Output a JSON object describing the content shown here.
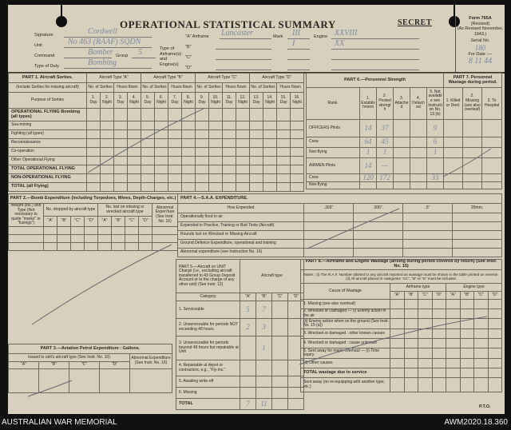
{
  "header": {
    "title": "OPERATIONAL STATISTICAL SUMMARY",
    "classification": "SECRET",
    "form": {
      "name": "Form 765A",
      "revised": "(Revised)",
      "as_revised": "(As Revised November, 1943.)",
      "serial_label": "Serial No.",
      "serial_value": "180",
      "date_label": "For Date :—",
      "date_value": "8 11 44"
    },
    "fields": [
      {
        "label": "Signature",
        "value": "Cordwell"
      },
      {
        "label": "Unit",
        "value": "No 463 (RAAF) SQDN"
      },
      {
        "label": "Command",
        "value": "Bomber"
      },
      {
        "label": "Type of Duty",
        "value": "Bombing"
      }
    ],
    "group_label": "Group",
    "group_value": "5",
    "airframe_label": "Type of Airframe(s) and Engine(s)",
    "airframes": [
      {
        "key": "\"A\" Airframe",
        "type": "Lancaster",
        "mark": "III",
        "engine": "XXVIII"
      },
      {
        "key": "\"B\"",
        "type": "",
        "mark": "I",
        "engine": "XX"
      },
      {
        "key": "\"C\"",
        "type": "",
        "mark": "",
        "engine": ""
      },
      {
        "key": "\"D\"",
        "type": "",
        "mark": "",
        "engine": ""
      }
    ],
    "mark_label": "Mark",
    "engine_label": "Engine"
  },
  "part1": {
    "title": "PART 1. Aircraft Sorties.",
    "note": "(Include Sorties for missing aircraft)",
    "purpose": "Purpose of Sorties",
    "types": [
      "Aircraft Type \"A\"",
      "Aircraft Type \"B\"",
      "Aircraft Type \"C\"",
      "Aircraft Type \"D\""
    ],
    "sub": [
      "No. of Sorties",
      "Hours flown"
    ],
    "cols": [
      "1. Day",
      "2. Night",
      "3. Day",
      "4. Night",
      "5. Day",
      "6. Night",
      "7. Day",
      "8. Night",
      "9. Day",
      "10. Night",
      "11. Day",
      "12. Night",
      "13. Day",
      "14. Night",
      "15. Day",
      "16. Night"
    ],
    "rows": [
      "OPERATIONAL FLYING  Bombing (all types)",
      "Sea-mining",
      "Fighting (all types)",
      "Reconnaissance",
      "Co-operation",
      "Other Operational Flying",
      "TOTAL OPERATIONAL FLYING",
      "NON-OPERATIONAL FLYING",
      "TOTAL (all Flying)"
    ]
  },
  "part6": {
    "title": "PART 6.—Personnel Strength",
    "rank": "Rank.",
    "cols": [
      "1. Establishment",
      "2. Posted strength",
      "3. Attached",
      "4. Detached",
      "5. Not available see Instruction No. 13 (b)"
    ],
    "rows": [
      {
        "label": "OFFICERS Pilots",
        "values": [
          "14",
          "37",
          "",
          "",
          "9"
        ]
      },
      {
        "label": "Crew",
        "values": [
          "64",
          "45",
          "",
          "",
          "6"
        ]
      },
      {
        "label": "Non-flying",
        "values": [
          "1",
          "1",
          "",
          "",
          "1"
        ]
      },
      {
        "label": "AIRMEN Pilots",
        "values": [
          "14",
          "—",
          "",
          "",
          ""
        ]
      },
      {
        "label": "Crew",
        "values": [
          "120",
          "172",
          "",
          "",
          "33"
        ]
      },
      {
        "label": "Non-flying",
        "values": [
          "",
          "",
          "",
          "",
          ""
        ]
      }
    ]
  },
  "part7": {
    "title": "PART 7. Personnel Wastage during period.",
    "cols": [
      "1. Killed or Died.",
      "2. Missing (see also overleaf)",
      "3. To Hospital"
    ]
  },
  "part2": {
    "title": "PART 2.—Bomb Expenditure (including Torpedoes, Mines, Depth-Charges, etc.)",
    "weight": "Weight (lbs.) and Type (Not necessary to quote \"marks\" or \"fusings\")",
    "dropped": "No. dropped by aircraft type",
    "lost": "No. lost on missing or wrecked aircraft type",
    "abnormal": "Abnormal Expen'ture (See Instr. No. 16)",
    "keys": [
      "\"A\"",
      "\"B\"",
      "\"C\"",
      "\"D\""
    ]
  },
  "part4": {
    "title": "PART 4.—S.A.A. EXPENDITURE.",
    "how": "How Expended",
    "cols": [
      ".303\"",
      ".300\".",
      ".5\"",
      "20mm."
    ],
    "rows": [
      "Operationally fired in air",
      "Expended in Practice, Training or Butt Tests (Aircraft)",
      "Rounds lost on Wrecked or Missing Aircraft",
      "Ground Defence Expenditure, operational and training",
      "Abnormal expenditure (see Instruction No. 16)"
    ]
  },
  "part3": {
    "title": "PART 3.—Aviation Petrol Expenditure : Gallons.",
    "issued": "Issued to unit's aircraft type (See Instr. No. 10)",
    "abnormal": "Abnormal Expenditure (See Instr. No. 16)",
    "keys": [
      "\"A\"",
      "\"B\"",
      "\"C\"",
      "\"D\""
    ]
  },
  "part5": {
    "title": "PART 5.—Aircraft on UNIT Charge (i.e., excluding aircraft transferred to 43 Group Deposit Account or to the charge of any other unit) (See Instr. 12)",
    "aircraft_type": "Aircraft type",
    "category": "Category",
    "keys": [
      "\"A\"",
      "\"B\"",
      "\"C\"",
      "\"D\""
    ],
    "rows": [
      {
        "label": "1. Serviceable",
        "values": [
          "5",
          "7",
          "",
          ""
        ]
      },
      {
        "label": "2. Unserviceable for periods NOT exceeding 48 hours",
        "values": [
          "2",
          "3",
          "",
          ""
        ]
      },
      {
        "label": "3. Unserviceable for periods beyond 48 hours but repairable at Unit",
        "values": [
          "",
          "1",
          "",
          ""
        ]
      },
      {
        "label": "4. Repairable at depot or contractors, e.g., \"Fly-ins.\"",
        "values": [
          "",
          "",
          "",
          ""
        ]
      },
      {
        "label": "5. Awaiting write-off",
        "values": [
          "",
          "",
          "",
          ""
        ]
      },
      {
        "label": "6. Missing",
        "values": [
          "",
          "",
          "",
          ""
        ]
      },
      {
        "label": "TOTAL",
        "values": [
          "7",
          "11",
          "",
          ""
        ]
      }
    ]
  },
  "part8": {
    "title": "PART 8.—Airframe and Engine Wastage (arising during period covered by return) (See Instr. No. 15)",
    "notes": "Notes : (i) The R.A.F. Number allotted to any aircraft reported as wastage must be shown in the table printed on reverse. (ii) All aircraft placed in categories \"AC\", \"B\" or \"E\" must be included.",
    "cause": "Cause of Wastage",
    "airframe": "Airframe type",
    "engine": "Engine type",
    "keys": [
      "\"A\"",
      "\"B\"",
      "\"C\"",
      "\"D\"",
      "\"A\"",
      "\"B\"",
      "\"C\"",
      "\"D\""
    ],
    "rows": [
      "1. Missing (see also overleaf)",
      "2. Wrecked or Damaged — (i) Enemy action in the air",
      "(ii) Enemy action when on the ground (See Instr. No. 15 (a))",
      "3. Wrecked or damaged : other known causes",
      "4. Wrecked or damaged : cause unknown",
      "5. Sent away for major overhaul — (i) Time expiry",
      "(ii) Other causes",
      "TOTAL wastage due to service",
      "Sent away (on re-equipping with another type, etc.)"
    ]
  },
  "pto": "P.T.O.",
  "footer": {
    "left": "AUSTRALIAN WAR MEMORIAL",
    "right": "AWM2020.18.360"
  }
}
